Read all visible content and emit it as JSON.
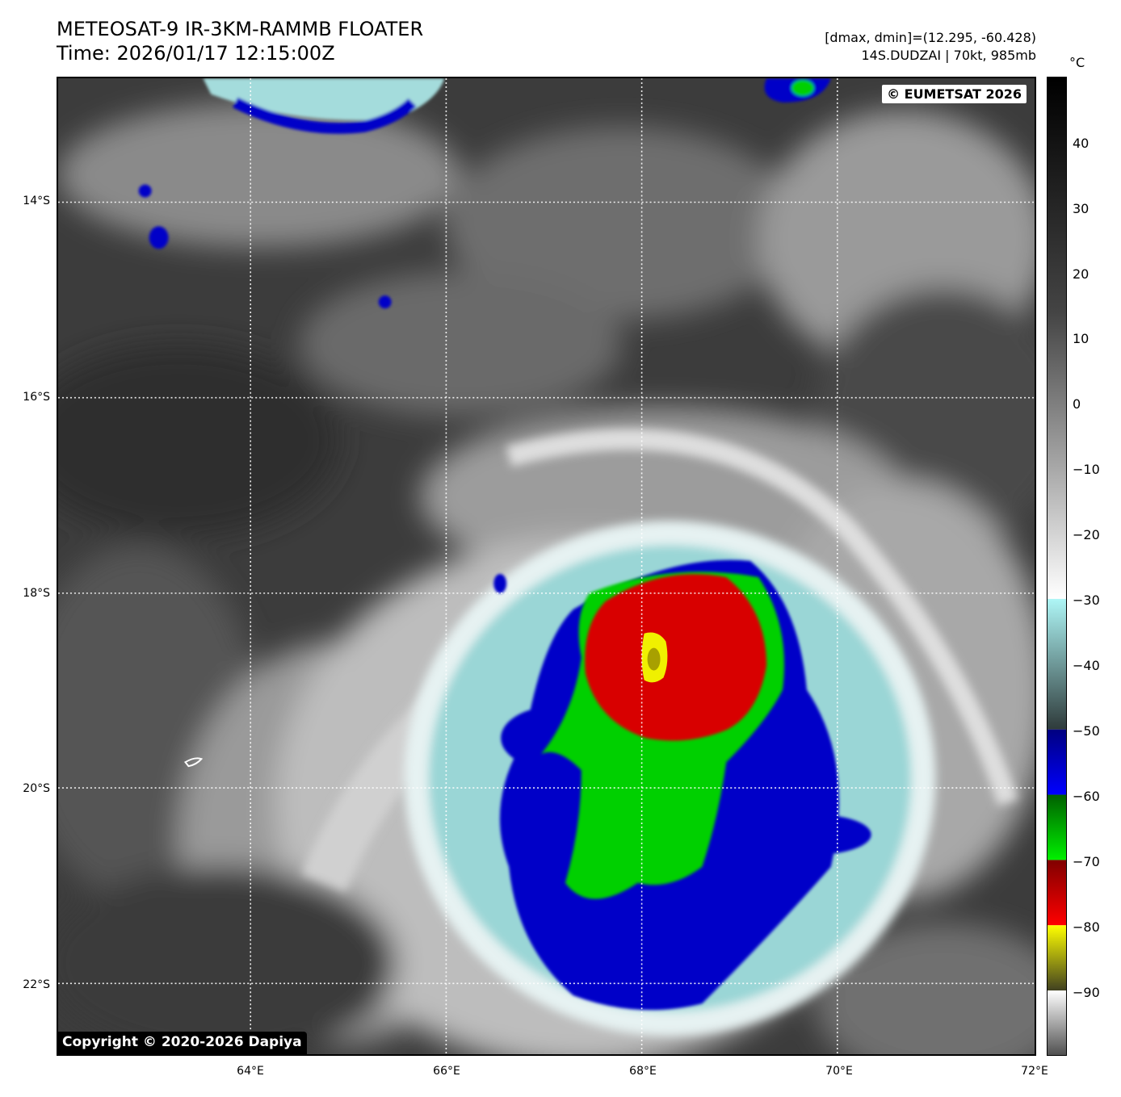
{
  "header": {
    "title_line1": "METEOSAT-9 IR-3KM-RAMMB FLOATER",
    "title_line2": "Time: 2026/01/17 12:15:00Z",
    "info_line1": "[dmax, dmin]=(12.295, -60.428)",
    "info_line2": "14S.DUDZAI | 70kt, 985mb"
  },
  "map": {
    "copyright_top": "© EUMETSAT 2026",
    "copyright_bottom": "Copyright © 2020-2026 Dapiya",
    "lat_labels": [
      "14°S",
      "16°S",
      "18°S",
      "20°S",
      "22°S"
    ],
    "lon_labels": [
      "64°E",
      "66°E",
      "68°E",
      "70°E",
      "72°E"
    ],
    "storm_name": "14S.DUDZAI",
    "storm_intensity": "70kt, 985mb"
  },
  "colorbar": {
    "unit": "°C",
    "ticks": [
      "40",
      "30",
      "20",
      "10",
      "0",
      "−10",
      "−20",
      "−30",
      "−40",
      "−50",
      "−60",
      "−70",
      "−80",
      "−90"
    ],
    "range": [
      -100,
      50
    ],
    "colors": {
      "warm": "#000000",
      "mid_gray": "#9a9a9a",
      "cold_white": "#ffffff",
      "cyan": "#aef6f6",
      "blue": "#0000c8",
      "green": "#00d000",
      "red": "#d80000",
      "yellow": "#f0f000"
    }
  }
}
